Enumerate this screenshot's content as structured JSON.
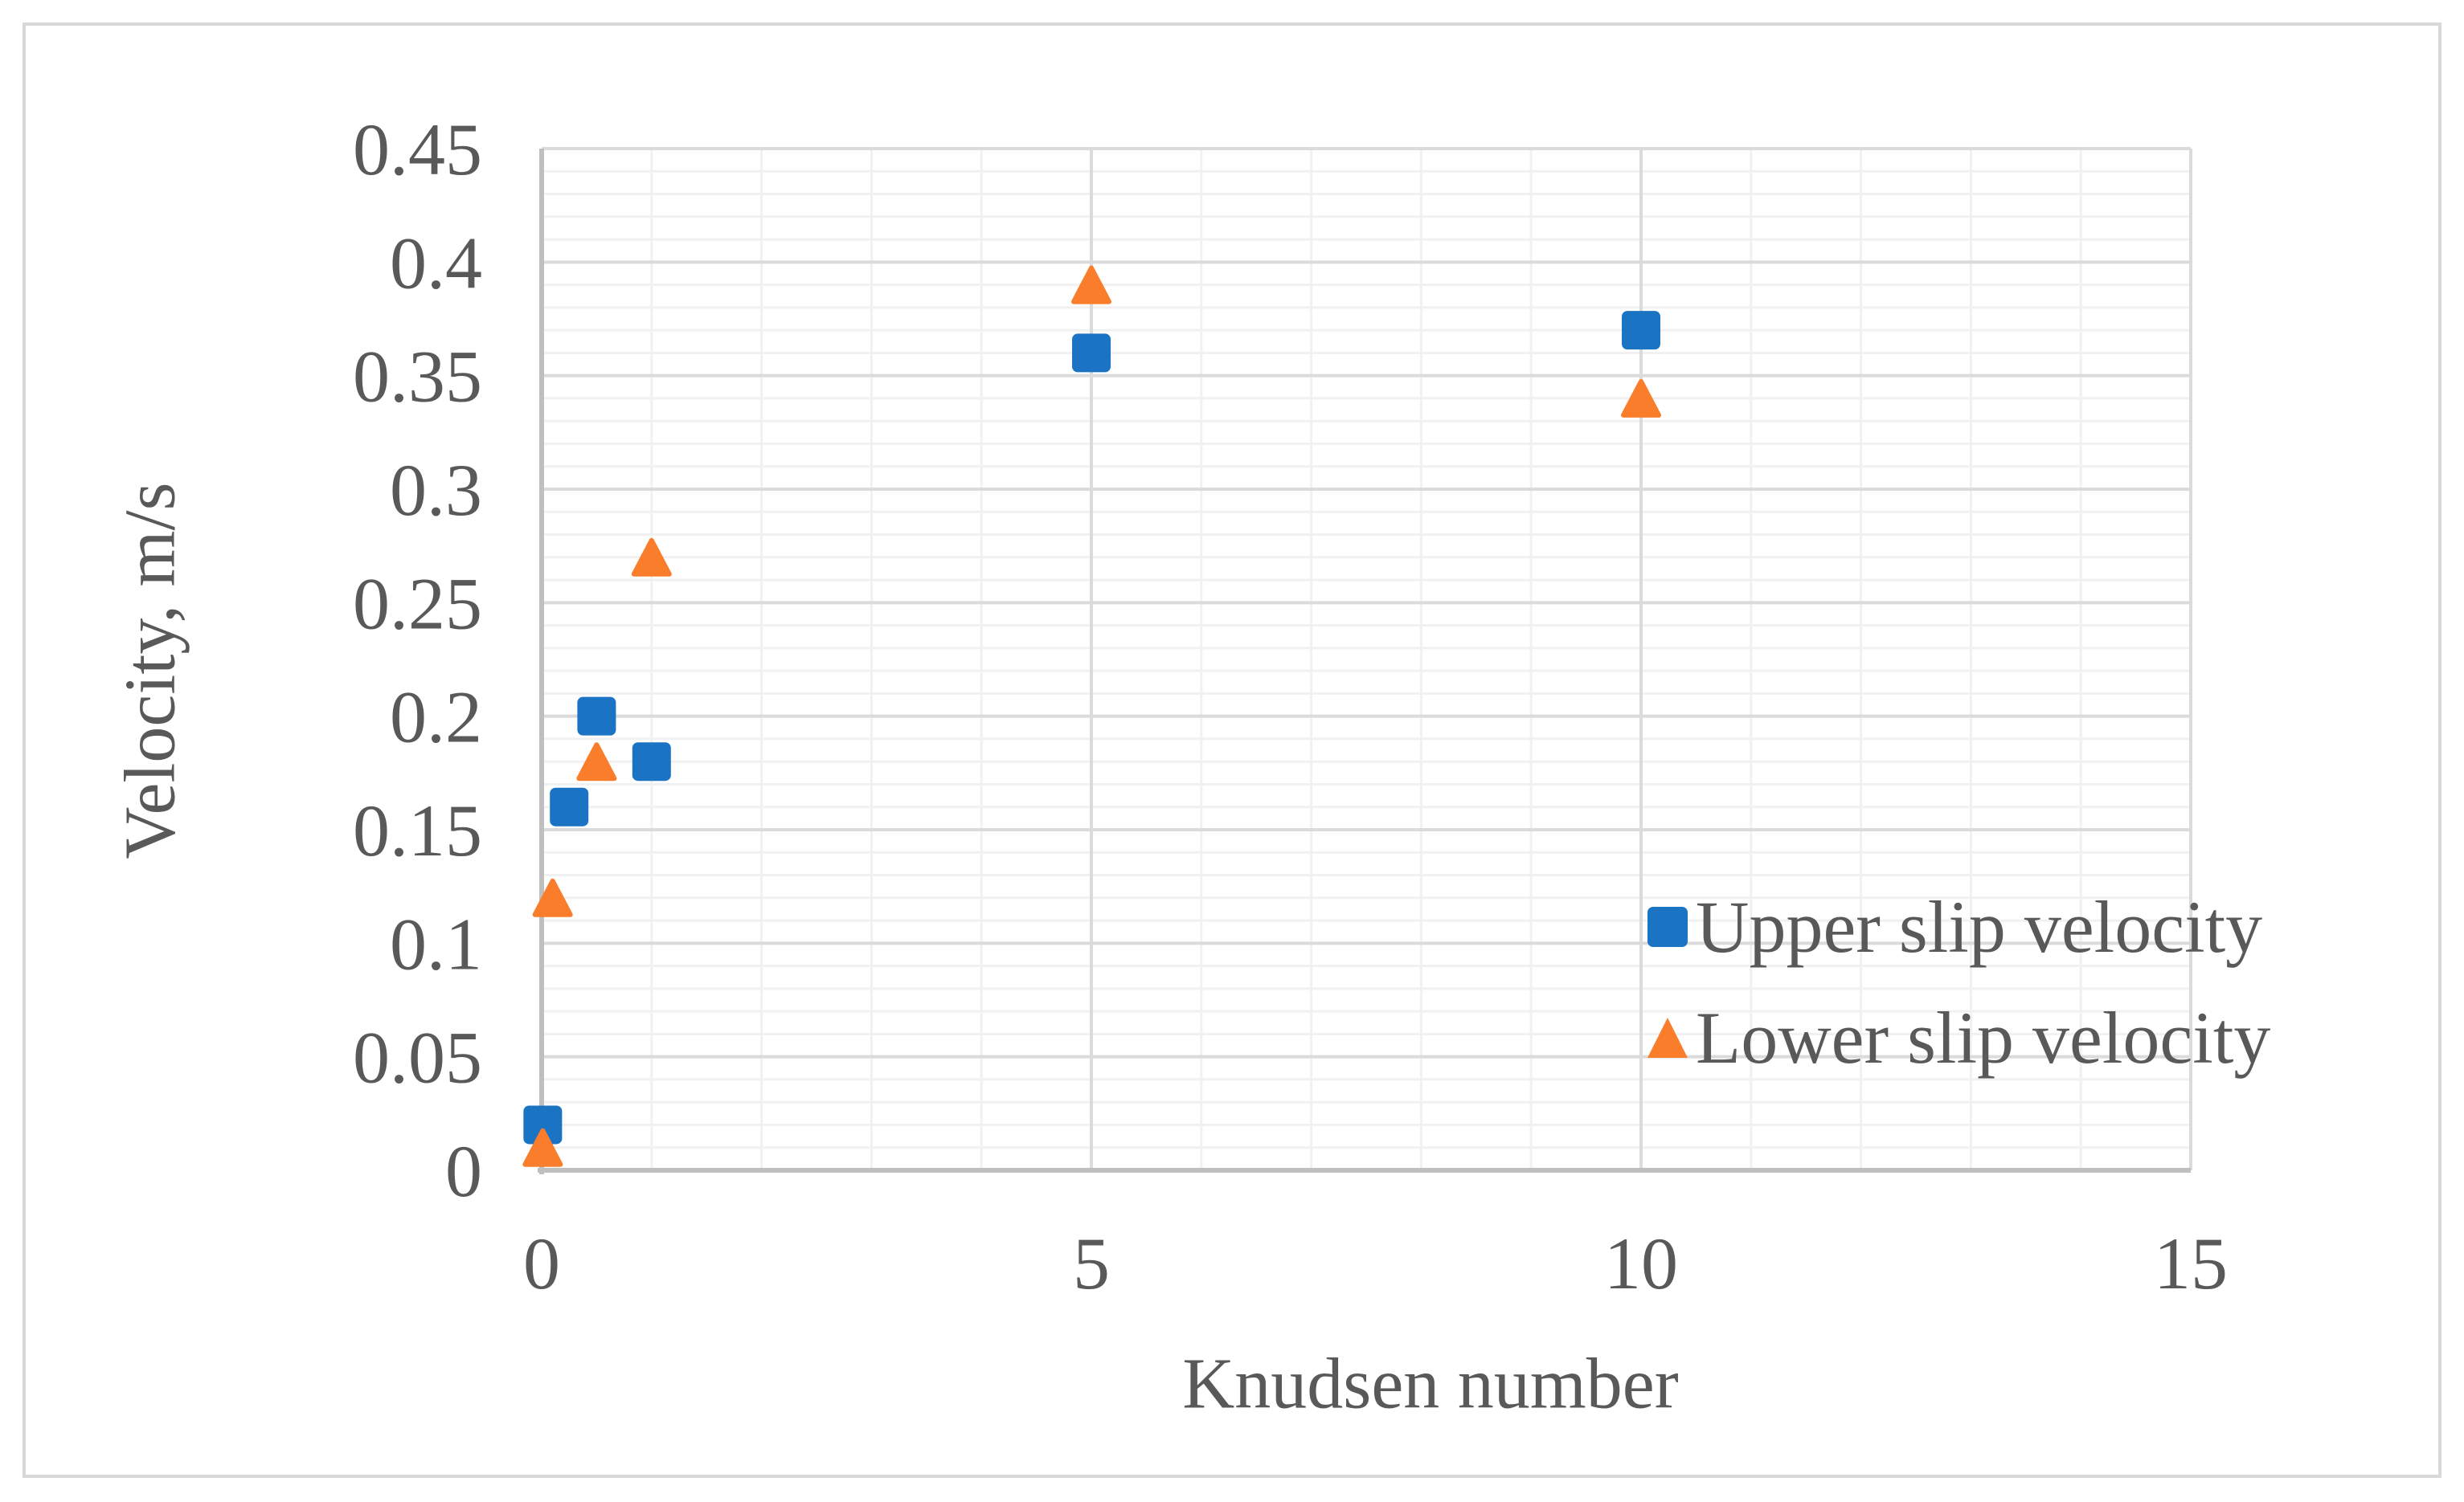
{
  "figure": {
    "background_color": "#FFFFFF",
    "border_color": "#D8D8D8"
  },
  "colors": {
    "text_gray": "#595959",
    "axis_line": "#BFBFBF",
    "gridline_major": "#DBDBDB",
    "gridline_minor": "#F1F1F1",
    "series_blue": "#1B73C4",
    "series_orange": "#F97D2B"
  },
  "chart_data": {
    "type": "scatter",
    "title": "",
    "xlabel": "Knudsen number",
    "ylabel": "Velocity, m/s",
    "xlim": [
      0,
      15
    ],
    "ylim": [
      0,
      0.45
    ],
    "grid": "major and minor, horizontal and vertical",
    "x_minor_step": 1,
    "y_minor_step": 0.01,
    "x_major_step": 5,
    "y_major_step": 0.05,
    "x_ticks": [
      {
        "value": 0,
        "label": "0"
      },
      {
        "value": 5,
        "label": "5"
      },
      {
        "value": 10,
        "label": "10"
      },
      {
        "value": 15,
        "label": "15"
      }
    ],
    "y_ticks": [
      {
        "value": 0,
        "label": "0"
      },
      {
        "value": 0.05,
        "label": "0.05"
      },
      {
        "value": 0.1,
        "label": "0.1"
      },
      {
        "value": 0.15,
        "label": "0.15"
      },
      {
        "value": 0.2,
        "label": "0.2"
      },
      {
        "value": 0.25,
        "label": "0.25"
      },
      {
        "value": 0.3,
        "label": "0.3"
      },
      {
        "value": 0.35,
        "label": "0.35"
      },
      {
        "value": 0.4,
        "label": "0.4"
      },
      {
        "value": 0.45,
        "label": "0.45"
      }
    ],
    "legend_position": "inside right, middle-lower area",
    "series": [
      {
        "name": "Upper slip velocity",
        "marker": "square",
        "color": "#1B73C4",
        "points": [
          [
            0.01,
            0.02
          ],
          [
            0.25,
            0.16
          ],
          [
            0.5,
            0.2
          ],
          [
            1,
            0.18
          ],
          [
            5,
            0.36
          ],
          [
            10,
            0.37
          ]
        ]
      },
      {
        "name": "Lower slip velocity",
        "marker": "triangle",
        "color": "#F97D2B",
        "points": [
          [
            0.01,
            0.01
          ],
          [
            0.1,
            0.12
          ],
          [
            0.5,
            0.18
          ],
          [
            1,
            0.27
          ],
          [
            5,
            0.39
          ],
          [
            10,
            0.34
          ]
        ]
      }
    ]
  },
  "legend": {
    "items": [
      {
        "label": "Upper slip velocity",
        "marker": "square"
      },
      {
        "label": "Lower slip velocity",
        "marker": "triangle"
      }
    ]
  }
}
